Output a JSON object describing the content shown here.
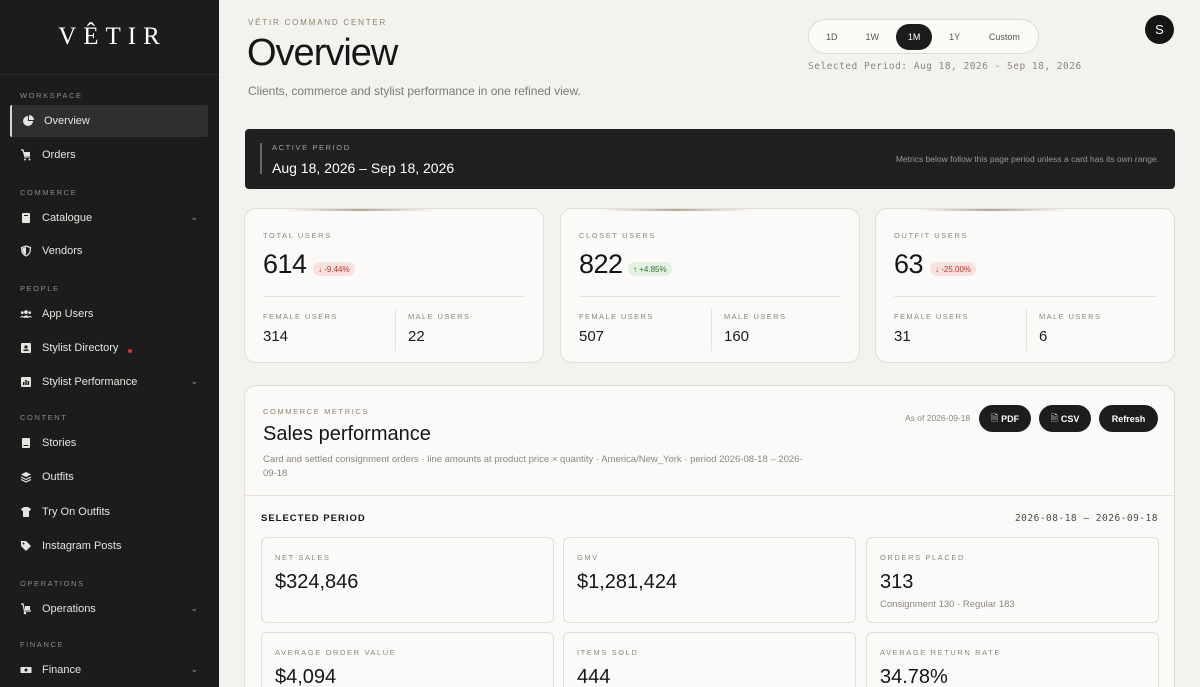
{
  "brand": {
    "logo": "VÊTIR"
  },
  "sidebar": {
    "sections": [
      {
        "label": "WORKSPACE"
      },
      {
        "label": "COMMERCE"
      },
      {
        "label": "PEOPLE"
      },
      {
        "label": "CONTENT"
      },
      {
        "label": "OPERATIONS"
      },
      {
        "label": "FINANCE"
      }
    ],
    "items": [
      {
        "label": "Overview",
        "icon": "pie-chart-icon",
        "active": true
      },
      {
        "label": "Orders",
        "icon": "cart-icon"
      },
      {
        "label": "Catalogue",
        "icon": "book-icon",
        "expandable": true
      },
      {
        "label": "Vendors",
        "icon": "shield-icon"
      },
      {
        "label": "App Users",
        "icon": "users-icon"
      },
      {
        "label": "Stylist Directory",
        "icon": "id-card-icon",
        "notification": true
      },
      {
        "label": "Stylist Performance",
        "icon": "chart-icon",
        "expandable": true
      },
      {
        "label": "Stories",
        "icon": "book-open-icon"
      },
      {
        "label": "Outfits",
        "icon": "layers-icon"
      },
      {
        "label": "Try On Outfits",
        "icon": "shirt-icon"
      },
      {
        "label": "Instagram Posts",
        "icon": "tag-icon"
      },
      {
        "label": "Operations",
        "icon": "dolly-icon",
        "expandable": true
      },
      {
        "label": "Finance",
        "icon": "money-icon",
        "expandable": true
      }
    ]
  },
  "header": {
    "eyebrow": "VÊTIR COMMAND CENTER",
    "title": "Overview",
    "subtitle": "Clients, commerce and stylist performance in one refined view.",
    "period_tabs": [
      "1D",
      "1W",
      "1M",
      "1Y",
      "Custom"
    ],
    "active_tab": "1M",
    "selected_period": "Selected Period: Aug 18, 2026 - Sep 18, 2026",
    "avatar_initial": "S"
  },
  "banner": {
    "label": "ACTIVE PERIOD",
    "value": "Aug 18, 2026 – Sep 18, 2026",
    "note": "Metrics below follow this page period unless a card has its own range."
  },
  "user_cards": [
    {
      "label": "TOTAL USERS",
      "value": "614",
      "change": "-9.44%",
      "direction": "down",
      "female_label": "FEMALE USERS",
      "female": "314",
      "male_label": "MALE USERS",
      "male": "22"
    },
    {
      "label": "CLOSET USERS",
      "value": "822",
      "change": "+4.85%",
      "direction": "up",
      "female_label": "FEMALE USERS",
      "female": "507",
      "male_label": "MALE USERS",
      "male": "160"
    },
    {
      "label": "OUTFIT USERS",
      "value": "63",
      "change": "-25.00%",
      "direction": "down",
      "female_label": "FEMALE USERS",
      "female": "31",
      "male_label": "MALE USERS",
      "male": "6"
    }
  ],
  "commerce": {
    "eyebrow": "COMMERCE METRICS",
    "title": "Sales performance",
    "description": "Card and settled consignment orders · line amounts at product price × quantity · America/New_York · period 2026-08-18 – 2026-09-18",
    "as_of": "As of 2026-09-18",
    "buttons": {
      "pdf": "PDF",
      "csv": "CSV",
      "refresh": "Refresh"
    },
    "section_title": "SELECTED PERIOD",
    "range": "2026-08-18 – 2026-09-18",
    "metrics": [
      {
        "label": "NET SALES",
        "value": "$324,846",
        "sub": ""
      },
      {
        "label": "GMV",
        "value": "$1,281,424",
        "sub": ""
      },
      {
        "label": "ORDERS PLACED",
        "value": "313",
        "sub": "Consignment 130 · Regular 183"
      },
      {
        "label": "AVERAGE ORDER VALUE",
        "value": "$4,094",
        "sub": ""
      },
      {
        "label": "ITEMS SOLD",
        "value": "444",
        "sub": ""
      },
      {
        "label": "AVERAGE RETURN RATE",
        "value": "34.78%",
        "sub": ""
      }
    ]
  }
}
